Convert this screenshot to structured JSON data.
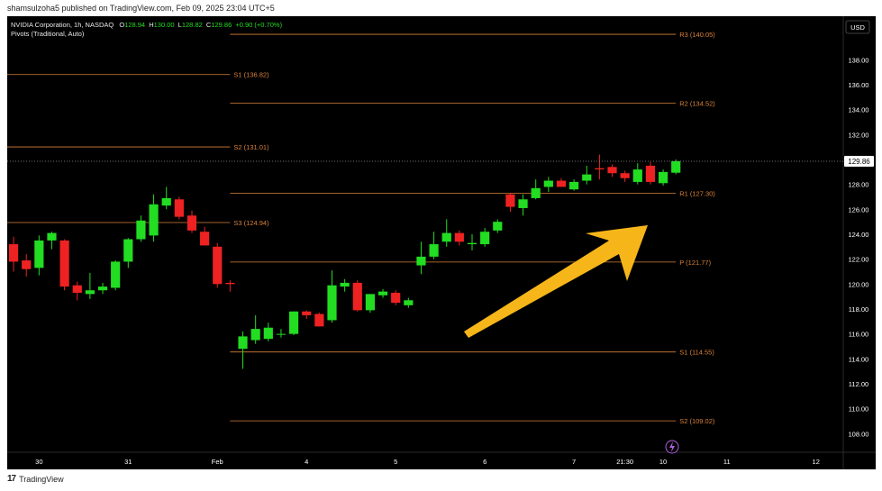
{
  "publisher_text": "shamsulzoha5 published on TradingView.com, Feb 09, 2025 23:04 UTC+5",
  "footer_brand": "TradingView",
  "legend": {
    "symbol": "NVIDIA Corporation, 1h, NASDAQ",
    "o_label": "O",
    "o_value": "128.94",
    "h_label": "H",
    "h_value": "130.00",
    "l_label": "L",
    "l_value": "128.82",
    "c_label": "C",
    "c_value": "129.86",
    "change": "+0.90 (+0.70%)",
    "indicator": "Pivots (Traditional, Auto)"
  },
  "currency": "USD",
  "current_price_label": "129.86",
  "colors": {
    "background": "#000000",
    "bull": "#22dd22",
    "bear": "#ee2222",
    "pivot": "#d9823b",
    "arrow": "#f6b619",
    "axis_text": "#ffffff"
  },
  "chart_data": {
    "type": "candlestick",
    "title": "NVIDIA Corporation, 1h, NASDAQ",
    "ylim": [
      106.5,
      141.5
    ],
    "y_ticks": [
      108,
      110,
      112,
      114,
      116,
      118,
      120,
      122,
      124,
      126,
      128,
      130,
      132,
      134,
      136,
      138
    ],
    "y_tick_labels": [
      "108.00",
      "110.00",
      "112.00",
      "114.00",
      "116.00",
      "118.00",
      "120.00",
      "122.00",
      "124.00",
      "126.00",
      "128.00",
      "130.00",
      "132.00",
      "134.00",
      "136.00",
      "138.00"
    ],
    "x_ticks": [
      {
        "label": "30",
        "at": 2.5
      },
      {
        "label": "31",
        "at": 9.5
      },
      {
        "label": "Feb",
        "at": 16.5
      },
      {
        "label": "4",
        "at": 23.5
      },
      {
        "label": "5",
        "at": 30.5
      },
      {
        "label": "6",
        "at": 37.5
      },
      {
        "label": "7",
        "at": 44.5
      },
      {
        "label": "21:30",
        "at": 48.5
      },
      {
        "label": "10",
        "at": 51.5
      },
      {
        "label": "11",
        "at": 56.5
      },
      {
        "label": "12",
        "at": 63.5
      }
    ],
    "x_range": [
      0,
      65.5
    ],
    "candles": [
      {
        "o": 123.2,
        "h": 123.8,
        "l": 121.0,
        "c": 121.8
      },
      {
        "o": 121.9,
        "h": 122.4,
        "l": 120.6,
        "c": 121.2
      },
      {
        "o": 121.3,
        "h": 123.9,
        "l": 120.7,
        "c": 123.5
      },
      {
        "o": 123.5,
        "h": 124.2,
        "l": 122.8,
        "c": 124.1
      },
      {
        "o": 123.5,
        "h": 123.6,
        "l": 119.5,
        "c": 119.8
      },
      {
        "o": 119.9,
        "h": 120.2,
        "l": 118.7,
        "c": 119.3
      },
      {
        "o": 119.2,
        "h": 120.9,
        "l": 118.8,
        "c": 119.5
      },
      {
        "o": 119.5,
        "h": 120.1,
        "l": 119.2,
        "c": 119.8
      },
      {
        "o": 119.7,
        "h": 121.9,
        "l": 119.5,
        "c": 121.8
      },
      {
        "o": 121.8,
        "h": 123.7,
        "l": 121.3,
        "c": 123.6
      },
      {
        "o": 123.6,
        "h": 125.5,
        "l": 123.4,
        "c": 125.1
      },
      {
        "o": 123.9,
        "h": 127.2,
        "l": 123.4,
        "c": 126.4
      },
      {
        "o": 126.3,
        "h": 127.8,
        "l": 126.0,
        "c": 126.9
      },
      {
        "o": 126.8,
        "h": 127.0,
        "l": 125.2,
        "c": 125.4
      },
      {
        "o": 125.5,
        "h": 125.9,
        "l": 124.1,
        "c": 124.3
      },
      {
        "o": 124.2,
        "h": 124.6,
        "l": 123.1,
        "c": 123.1
      },
      {
        "o": 123.0,
        "h": 123.3,
        "l": 119.7,
        "c": 120.0
      },
      {
        "o": 120.1,
        "h": 120.3,
        "l": 119.4,
        "c": 120.0
      },
      {
        "o": 114.8,
        "h": 116.2,
        "l": 113.2,
        "c": 115.8
      },
      {
        "o": 115.5,
        "h": 117.5,
        "l": 115.2,
        "c": 116.4
      },
      {
        "o": 115.6,
        "h": 116.9,
        "l": 115.4,
        "c": 116.5
      },
      {
        "o": 116.0,
        "h": 116.4,
        "l": 115.7,
        "c": 116.0
      },
      {
        "o": 116.0,
        "h": 117.8,
        "l": 115.9,
        "c": 117.8
      },
      {
        "o": 117.8,
        "h": 117.9,
        "l": 117.2,
        "c": 117.5
      },
      {
        "o": 117.6,
        "h": 117.7,
        "l": 116.6,
        "c": 116.6
      },
      {
        "o": 117.1,
        "h": 121.1,
        "l": 116.9,
        "c": 119.9
      },
      {
        "o": 119.8,
        "h": 120.4,
        "l": 119.4,
        "c": 120.1
      },
      {
        "o": 120.1,
        "h": 120.3,
        "l": 117.8,
        "c": 117.9
      },
      {
        "o": 117.9,
        "h": 119.2,
        "l": 117.7,
        "c": 119.2
      },
      {
        "o": 119.1,
        "h": 119.6,
        "l": 118.9,
        "c": 119.4
      },
      {
        "o": 119.3,
        "h": 119.5,
        "l": 118.3,
        "c": 118.5
      },
      {
        "o": 118.3,
        "h": 118.9,
        "l": 118.1,
        "c": 118.7
      },
      {
        "o": 121.5,
        "h": 123.4,
        "l": 120.8,
        "c": 122.2
      },
      {
        "o": 122.2,
        "h": 124.2,
        "l": 122.0,
        "c": 123.2
      },
      {
        "o": 123.4,
        "h": 125.2,
        "l": 123.0,
        "c": 124.1
      },
      {
        "o": 124.1,
        "h": 124.3,
        "l": 123.1,
        "c": 123.4
      },
      {
        "o": 123.2,
        "h": 124.0,
        "l": 122.7,
        "c": 123.3
      },
      {
        "o": 123.2,
        "h": 124.5,
        "l": 123.0,
        "c": 124.2
      },
      {
        "o": 124.3,
        "h": 125.2,
        "l": 124.1,
        "c": 125.0
      },
      {
        "o": 127.2,
        "h": 127.3,
        "l": 125.8,
        "c": 126.2
      },
      {
        "o": 126.1,
        "h": 127.2,
        "l": 125.5,
        "c": 126.8
      },
      {
        "o": 126.9,
        "h": 128.4,
        "l": 126.8,
        "c": 127.7
      },
      {
        "o": 127.8,
        "h": 128.6,
        "l": 127.4,
        "c": 128.3
      },
      {
        "o": 128.3,
        "h": 128.5,
        "l": 127.8,
        "c": 127.8
      },
      {
        "o": 127.6,
        "h": 128.4,
        "l": 127.5,
        "c": 128.2
      },
      {
        "o": 128.3,
        "h": 129.5,
        "l": 128.0,
        "c": 128.8
      },
      {
        "o": 129.3,
        "h": 130.4,
        "l": 128.4,
        "c": 129.2
      },
      {
        "o": 129.4,
        "h": 129.6,
        "l": 128.6,
        "c": 128.9
      },
      {
        "o": 128.9,
        "h": 129.1,
        "l": 128.2,
        "c": 128.5
      },
      {
        "o": 128.2,
        "h": 129.7,
        "l": 128.0,
        "c": 129.2
      },
      {
        "o": 129.5,
        "h": 129.8,
        "l": 128.0,
        "c": 128.2
      },
      {
        "o": 128.1,
        "h": 129.2,
        "l": 127.9,
        "c": 129.0
      },
      {
        "o": 128.94,
        "h": 130.0,
        "l": 128.82,
        "c": 129.86
      }
    ],
    "pivot_sets": [
      {
        "x_start": 0,
        "x_end": 17.5,
        "levels": [
          {
            "name": "S1",
            "label": "S1 (136.82)",
            "value": 136.82
          },
          {
            "name": "S2",
            "label": "S2 (131.01)",
            "value": 131.01
          },
          {
            "name": "S3",
            "label": "S3 (124.94)",
            "value": 124.94
          }
        ]
      },
      {
        "x_start": 17.5,
        "x_end": 52.5,
        "levels": [
          {
            "name": "R3",
            "label": "R3 (140.05)",
            "value": 140.05
          },
          {
            "name": "R2",
            "label": "R2 (134.52)",
            "value": 134.52
          },
          {
            "name": "R1",
            "label": "R1 (127.30)",
            "value": 127.3
          },
          {
            "name": "P",
            "label": "P (121.77)",
            "value": 121.77
          },
          {
            "name": "S1",
            "label": "S1 (114.55)",
            "value": 114.55
          },
          {
            "name": "S2",
            "label": "S2 (109.02)",
            "value": 109.02
          }
        ]
      }
    ],
    "current_price": 129.86,
    "grid": false,
    "annotation": "arrow"
  }
}
